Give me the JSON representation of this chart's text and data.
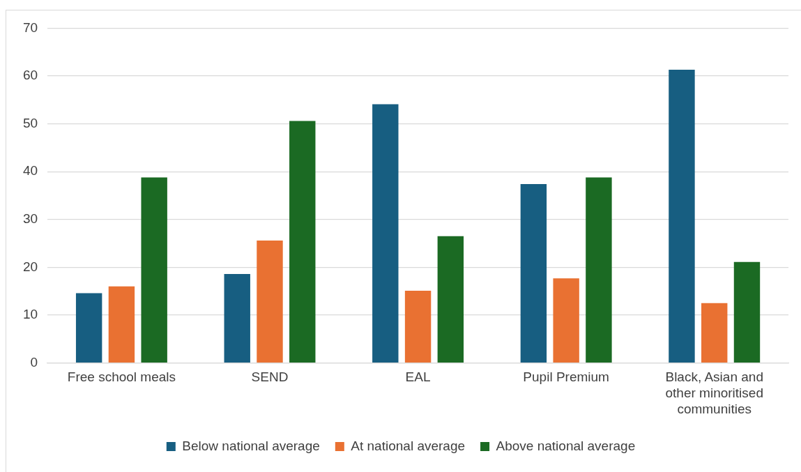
{
  "chart_data": {
    "type": "bar",
    "categories": [
      "Free school meals",
      "SEND",
      "EAL",
      "Pupil Premium",
      "Black, Asian and other minoritised communities"
    ],
    "series": [
      {
        "name": "Below national average",
        "color": "#175e81",
        "values": [
          14.6,
          18.6,
          54.1,
          37.4,
          61.3
        ]
      },
      {
        "name": "At national average",
        "color": "#e97132",
        "values": [
          16.0,
          25.6,
          15.1,
          17.7,
          12.5
        ]
      },
      {
        "name": "Above national average",
        "color": "#1b6a23",
        "values": [
          38.8,
          50.6,
          26.5,
          38.8,
          21.1
        ]
      }
    ],
    "ylim": [
      0,
      70
    ],
    "yticks": [
      0,
      10,
      20,
      30,
      40,
      50,
      60,
      70
    ],
    "grid": "y",
    "legend": "bottom"
  }
}
